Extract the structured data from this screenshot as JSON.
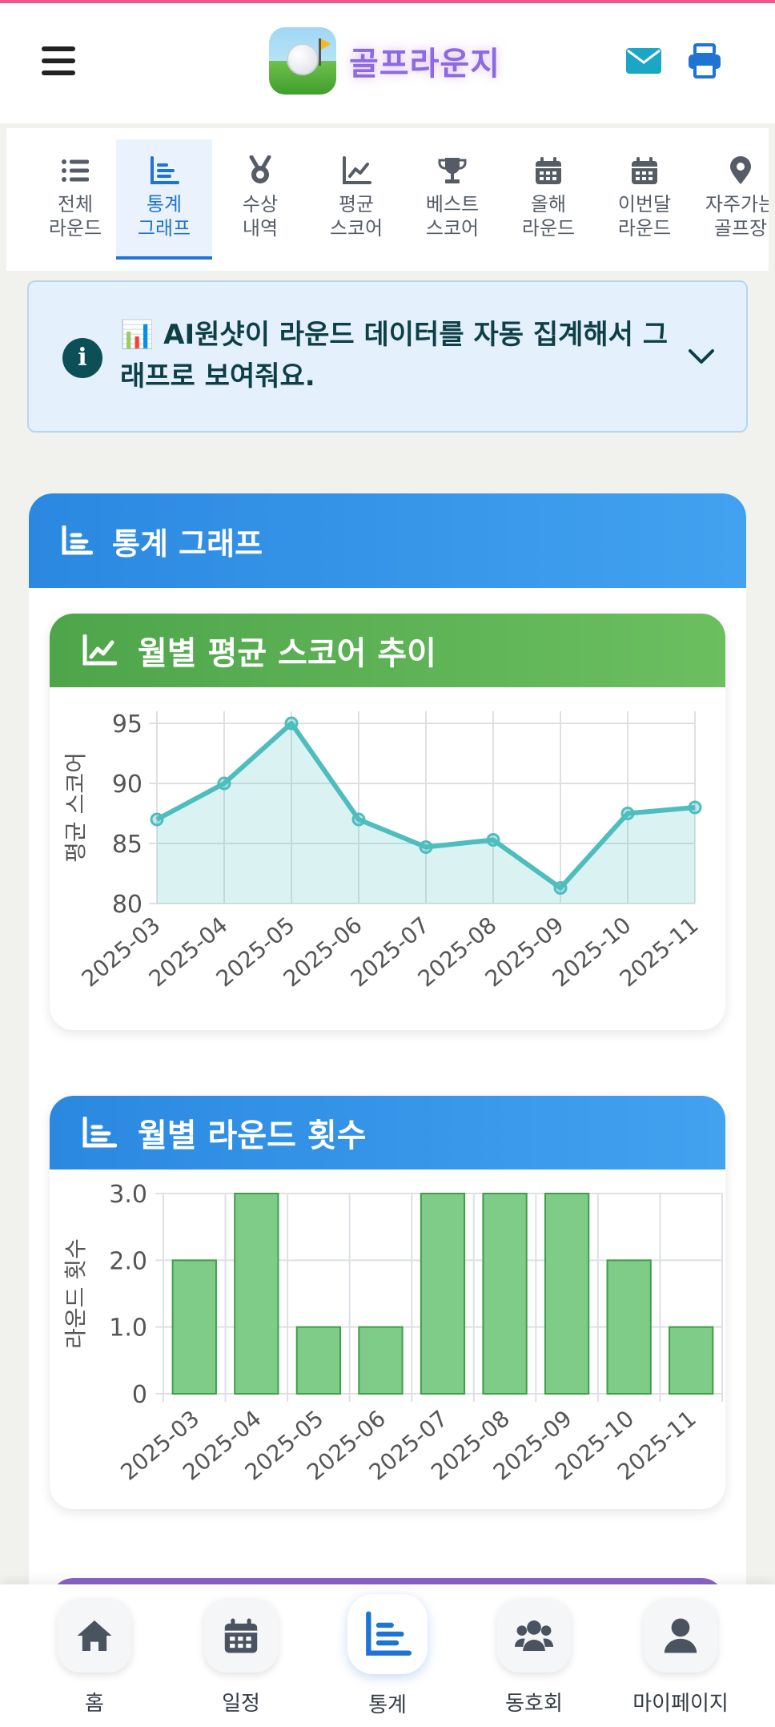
{
  "app": {
    "title": "골프라운지"
  },
  "colors": {
    "primary": "#1f73d3",
    "green": "#4ea54a",
    "teal": "#4dbdbd",
    "bar": "#7fcb88"
  },
  "header": {
    "menu_icon": "hamburger-icon",
    "mail_icon": "mail-icon",
    "print_icon": "print-icon"
  },
  "tabs": [
    {
      "label": "전체\n라운드",
      "icon": "list-icon",
      "active": false
    },
    {
      "label": "통계\n그래프",
      "icon": "chart-icon",
      "active": true
    },
    {
      "label": "수상\n내역",
      "icon": "medal-icon",
      "active": false
    },
    {
      "label": "평균\n스코어",
      "icon": "line-chart-icon",
      "active": false
    },
    {
      "label": "베스트\n스코어",
      "icon": "trophy-icon",
      "active": false
    },
    {
      "label": "올해\n라운드",
      "icon": "calendar-icon",
      "active": false
    },
    {
      "label": "이번달\n라운드",
      "icon": "calendar-icon",
      "active": false
    },
    {
      "label": "자주가는\n골프장",
      "icon": "location-icon",
      "active": false
    }
  ],
  "info": {
    "text": "📊 AI원샷이 라운드 데이터를 자동 집계해서 그래프로 보여줘요."
  },
  "section": {
    "title": "통계 그래프"
  },
  "charts": {
    "score_title": "월별 평균 스코어 추이",
    "rounds_title": "월별 라운드 횟수"
  },
  "chart_data": [
    {
      "type": "line",
      "title": "월별 평균 스코어 추이",
      "xlabel": "",
      "ylabel": "평균 스코어",
      "x": [
        "2025-03",
        "2025-04",
        "2025-05",
        "2025-06",
        "2025-07",
        "2025-08",
        "2025-09",
        "2025-10",
        "2025-11"
      ],
      "values": [
        87,
        90,
        95,
        87,
        84.7,
        85.3,
        81.3,
        87.5,
        88
      ],
      "ylim": [
        80,
        96
      ],
      "yticks": [
        "80",
        "85",
        "90",
        "95"
      ],
      "grid": true,
      "fill": true
    },
    {
      "type": "bar",
      "title": "월별 라운드 횟수",
      "xlabel": "",
      "ylabel": "라운드 횟수",
      "categories": [
        "2025-03",
        "2025-04",
        "2025-05",
        "2025-06",
        "2025-07",
        "2025-08",
        "2025-09",
        "2025-10",
        "2025-11"
      ],
      "values": [
        2,
        3,
        1,
        1,
        3,
        3,
        3,
        2,
        1
      ],
      "ylim": [
        0,
        3
      ],
      "yticks": [
        "0",
        "1.0",
        "2.0",
        "3.0"
      ],
      "grid": true
    }
  ],
  "bottom_nav": [
    {
      "label": "홈",
      "icon": "home-icon",
      "active": false
    },
    {
      "label": "일정",
      "icon": "calendar-icon",
      "active": false
    },
    {
      "label": "통계",
      "icon": "chart-icon",
      "active": true
    },
    {
      "label": "동호회",
      "icon": "users-icon",
      "active": false
    },
    {
      "label": "마이페이지",
      "icon": "user-icon",
      "active": false
    }
  ]
}
